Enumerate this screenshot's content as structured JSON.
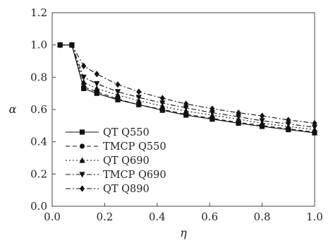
{
  "chart_data": {
    "type": "line",
    "title": "",
    "xlabel": "η",
    "ylabel": "α",
    "xlim": [
      0.0,
      1.0
    ],
    "ylim": [
      0.0,
      1.2
    ],
    "xticks": [
      "0.0",
      "0.2",
      "0.4",
      "0.6",
      "0.8",
      "1.0"
    ],
    "yticks": [
      "0.0",
      "0.2",
      "0.4",
      "0.6",
      "0.8",
      "1.0",
      "1.2"
    ],
    "grid": false,
    "legend_position": "bottom-left",
    "x": [
      0.03,
      0.075,
      0.12,
      0.17,
      0.25,
      0.33,
      0.42,
      0.51,
      0.61,
      0.71,
      0.8,
      0.9,
      1.0
    ],
    "series": [
      {
        "name": "QT Q550",
        "marker": "square",
        "dash": "solid",
        "values": [
          1.0,
          1.0,
          0.73,
          0.7,
          0.66,
          0.63,
          0.595,
          0.565,
          0.54,
          0.515,
          0.495,
          0.475,
          0.455
        ]
      },
      {
        "name": "TMCP Q550",
        "marker": "circle",
        "dash": "dashed",
        "values": [
          1.0,
          1.0,
          0.74,
          0.71,
          0.665,
          0.63,
          0.6,
          0.57,
          0.545,
          0.52,
          0.5,
          0.48,
          0.46
        ]
      },
      {
        "name": "QT Q690",
        "marker": "triangle-up",
        "dash": "dotted",
        "values": [
          1.0,
          1.0,
          0.77,
          0.73,
          0.69,
          0.655,
          0.62,
          0.59,
          0.565,
          0.54,
          0.515,
          0.495,
          0.475
        ]
      },
      {
        "name": "TMCP Q690",
        "marker": "triangle-down",
        "dash": "dash-dot",
        "values": [
          1.0,
          1.0,
          0.8,
          0.76,
          0.71,
          0.675,
          0.64,
          0.61,
          0.58,
          0.555,
          0.53,
          0.51,
          0.49
        ]
      },
      {
        "name": "QT Q890",
        "marker": "diamond",
        "dash": "dash-dot",
        "values": [
          1.0,
          1.0,
          0.87,
          0.82,
          0.755,
          0.71,
          0.67,
          0.635,
          0.605,
          0.58,
          0.56,
          0.535,
          0.515
        ]
      }
    ]
  }
}
